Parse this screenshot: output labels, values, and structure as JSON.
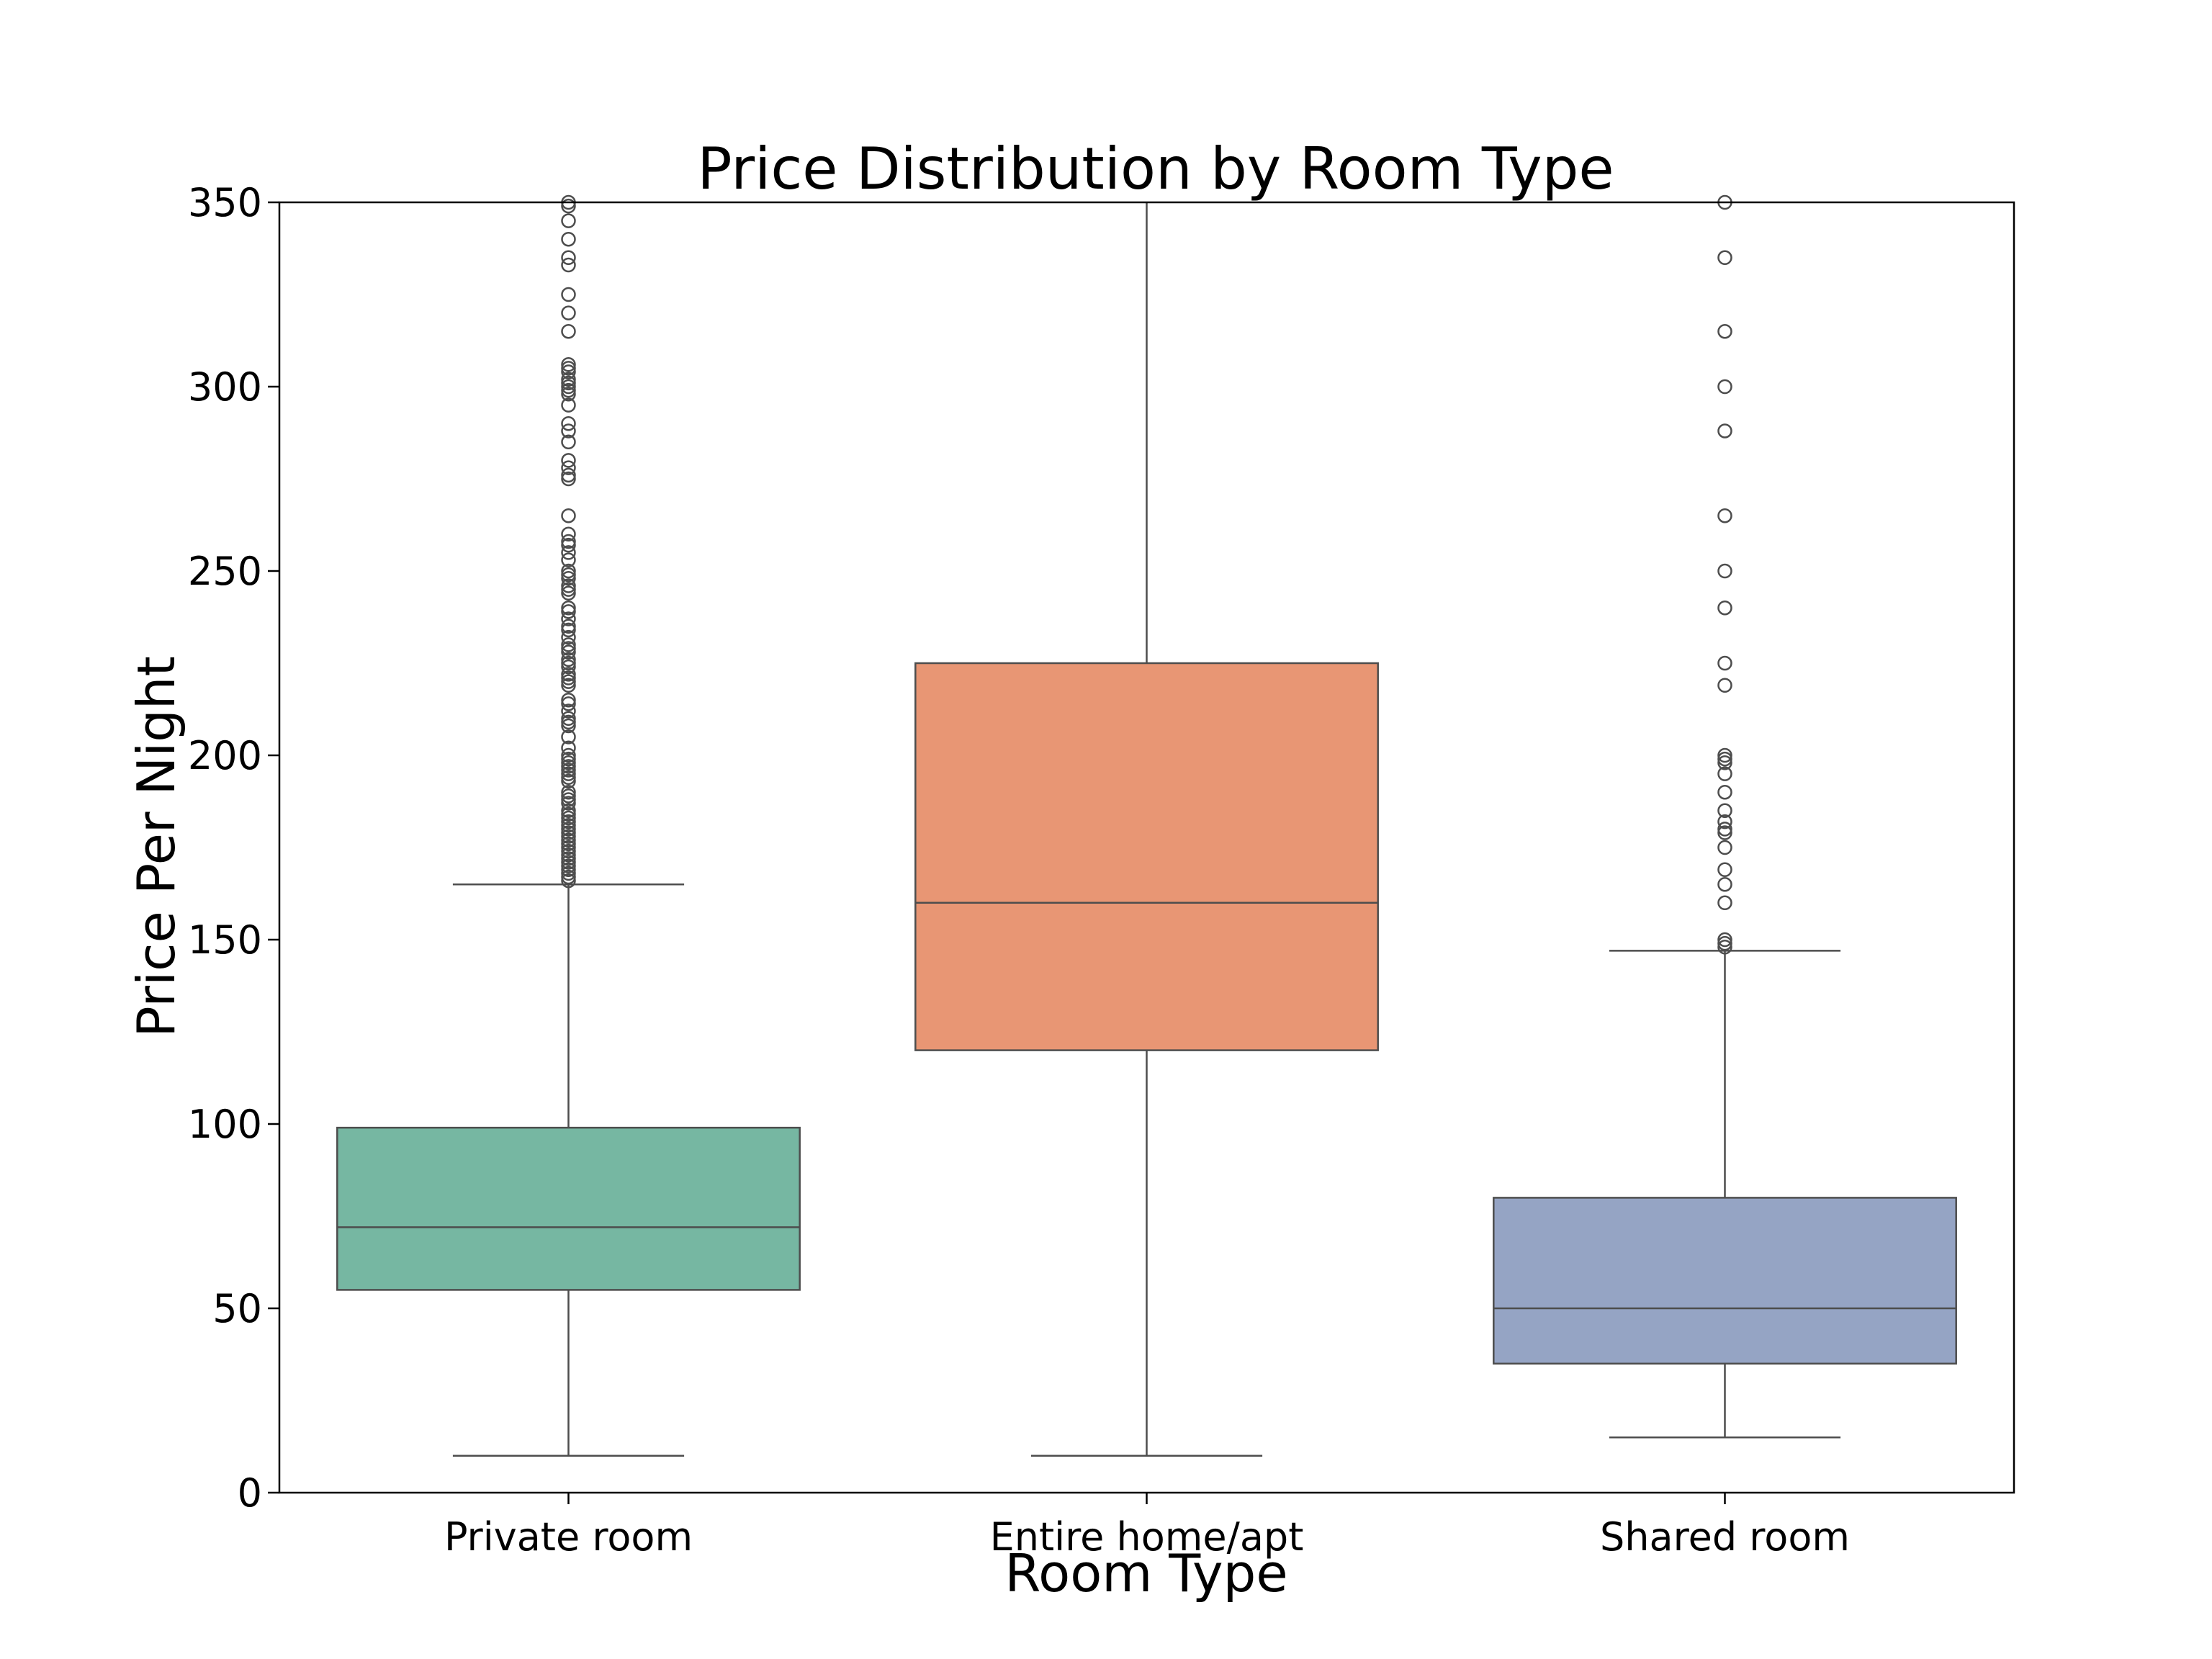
{
  "chart_data": {
    "type": "box",
    "title": "Price Distribution by Room Type",
    "xlabel": "Room Type",
    "ylabel": "Price Per Night",
    "ylim": [
      0,
      350
    ],
    "yticks": [
      0,
      50,
      100,
      150,
      200,
      250,
      300,
      350
    ],
    "grid": false,
    "categories": [
      "Private room",
      "Entire home/apt",
      "Shared room"
    ],
    "boxes": [
      {
        "category": "Private room",
        "color": "#76b7a2",
        "whisker_low": 10,
        "q1": 55,
        "median": 72,
        "q3": 99,
        "whisker_high": 165,
        "outliers": [
          166,
          167,
          168,
          169,
          170,
          171,
          172,
          173,
          174,
          175,
          176,
          177,
          178,
          179,
          180,
          181,
          182,
          183,
          184,
          185,
          187,
          188,
          189,
          190,
          193,
          194,
          195,
          196,
          197,
          198,
          199,
          200,
          202,
          205,
          208,
          209,
          210,
          212,
          214,
          215,
          219,
          220,
          221,
          222,
          224,
          225,
          226,
          228,
          229,
          230,
          232,
          234,
          235,
          237,
          239,
          240,
          244,
          245,
          246,
          248,
          249,
          250,
          253,
          255,
          257,
          258,
          260,
          265,
          275,
          276,
          278,
          280,
          285,
          288,
          290,
          295,
          298,
          299,
          300,
          301,
          302,
          304,
          305,
          306,
          315,
          320,
          325,
          333,
          335,
          340,
          345,
          349,
          350
        ]
      },
      {
        "category": "Entire home/apt",
        "color": "#e89674",
        "whisker_low": 10,
        "q1": 120,
        "median": 160,
        "q3": 225,
        "whisker_high": 350,
        "outliers": []
      },
      {
        "category": "Shared room",
        "color": "#95a4c4",
        "whisker_low": 15,
        "q1": 35,
        "median": 50,
        "q3": 80,
        "whisker_high": 147,
        "outliers": [
          148,
          149,
          150,
          160,
          165,
          169,
          175,
          179,
          180,
          182,
          185,
          190,
          195,
          198,
          199,
          200,
          219,
          225,
          240,
          250,
          265,
          288,
          300,
          315,
          335,
          350
        ]
      }
    ]
  }
}
